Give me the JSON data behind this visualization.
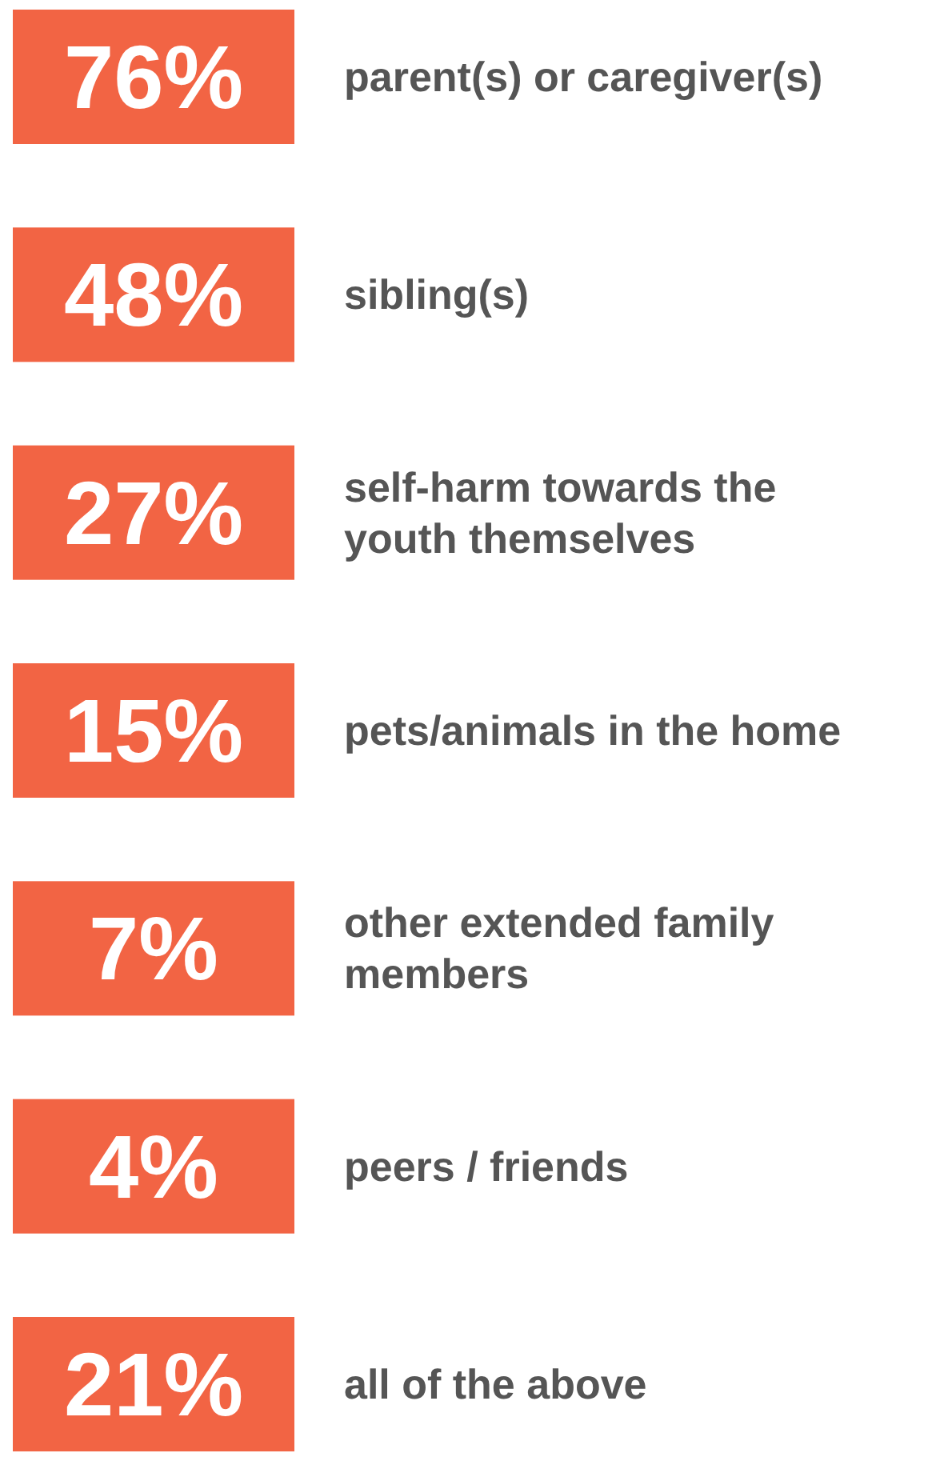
{
  "chart_data": {
    "type": "other",
    "categories": [
      "parent(s) or caregiver(s)",
      "sibling(s)",
      "self-harm towards the youth themselves",
      "pets/animals in the home",
      "other extended family members",
      "peers / friends",
      "all of the above"
    ],
    "values": [
      76,
      48,
      27,
      15,
      7,
      4,
      21
    ],
    "value_labels": [
      "76%",
      "48%",
      "27%",
      "15%",
      "7%",
      "4%",
      "21%"
    ],
    "color": "#f26444"
  }
}
